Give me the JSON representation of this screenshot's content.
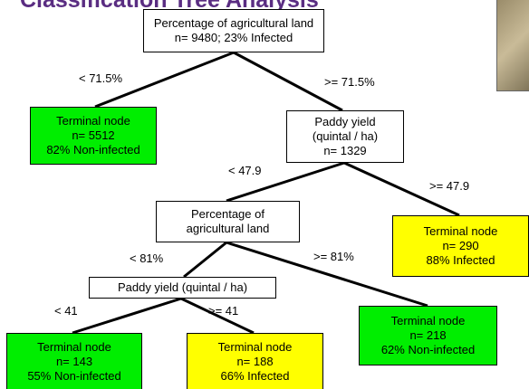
{
  "title": "Classification Tree Analysis",
  "nodes": [
    {
      "lines": [
        "Percentage of agricultural land",
        "n= 9480; 23% Infected"
      ]
    },
    {
      "lines": [
        "Terminal node",
        "n= 5512",
        "82% Non-infected"
      ]
    },
    {
      "lines": [
        "Paddy yield",
        "(quintal / ha)",
        "n= 1329"
      ]
    },
    {
      "lines": [
        "Percentage of",
        "agricultural land"
      ]
    },
    {
      "lines": [
        "Terminal node",
        "n= 290",
        "88% Infected"
      ]
    },
    {
      "lines": [
        "Paddy yield (quintal / ha)"
      ]
    },
    {
      "lines": [
        "Terminal node",
        "n= 218",
        "62% Non-infected"
      ]
    },
    {
      "lines": [
        "Terminal node",
        "n= 143",
        "55% Non-infected"
      ]
    },
    {
      "lines": [
        "Terminal node",
        "n= 188",
        "66% Infected"
      ]
    }
  ],
  "edges": [
    {
      "label": "< 71.5%"
    },
    {
      "label": ">= 71.5%"
    },
    {
      "label": "< 47.9"
    },
    {
      "label": ">= 47.9"
    },
    {
      "label": "< 81%"
    },
    {
      "label": ">= 81%"
    },
    {
      "label": "< 41"
    },
    {
      "label": ">= 41"
    }
  ]
}
